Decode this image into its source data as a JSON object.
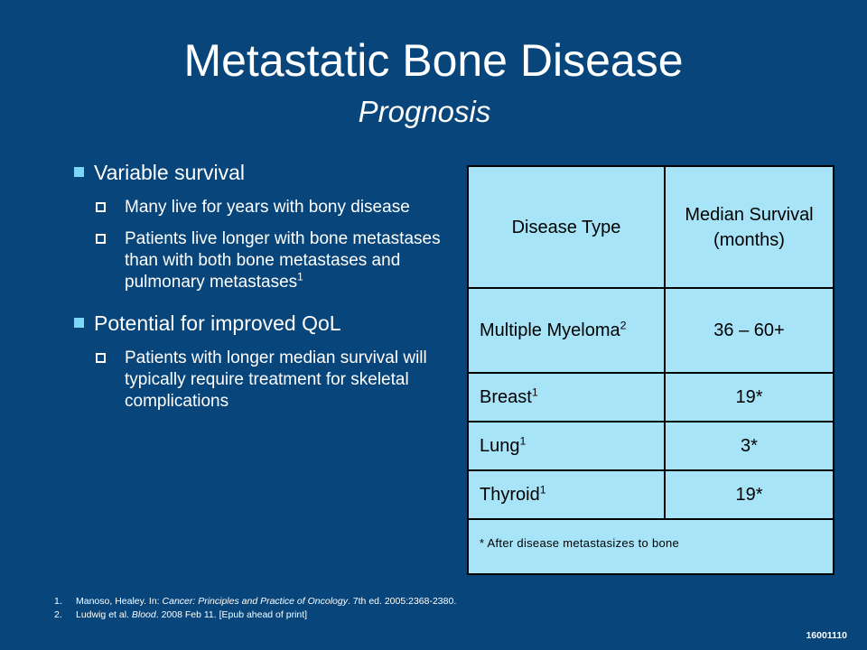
{
  "slide": {
    "title": "Metastatic Bone Disease",
    "subtitle": "Prognosis"
  },
  "bullets": [
    {
      "text": "Variable survival",
      "subs": [
        {
          "text": "Many live for years with bony disease",
          "ref": ""
        },
        {
          "text": "Patients live longer with bone metastases than with both bone metastases and pulmonary metastases",
          "ref": "1"
        }
      ]
    },
    {
      "text": "Potential for improved QoL",
      "subs": [
        {
          "text": "Patients with longer median survival will typically require treatment for skeletal complications",
          "ref": ""
        }
      ]
    }
  ],
  "table": {
    "headers": [
      "Disease Type",
      "Median Survival (months)"
    ],
    "rows": [
      {
        "disease": "Multiple Myeloma",
        "ref": "2",
        "survival": "36 – 60+"
      },
      {
        "disease": "Breast",
        "ref": "1",
        "survival": "19*"
      },
      {
        "disease": "Lung",
        "ref": "1",
        "survival": "3*"
      },
      {
        "disease": "Thyroid",
        "ref": "1",
        "survival": "19*"
      }
    ],
    "footnote": "* After disease metastasizes to bone"
  },
  "references": [
    {
      "num": "1.",
      "pre": "Manoso, Healey. In: ",
      "italic": "Cancer: Principles and Practice of Oncology",
      "post": ". 7th ed. 2005:2368-2380."
    },
    {
      "num": "2.",
      "pre": "Ludwig et al. ",
      "italic": "Blood",
      "post": ". 2008 Feb 11. [Epub ahead of print]"
    }
  ],
  "slide_code": "16001110",
  "colors": {
    "background": "#08457a",
    "table_fill": "#a8e4f8",
    "bullet_marker": "#7dd6f5"
  }
}
